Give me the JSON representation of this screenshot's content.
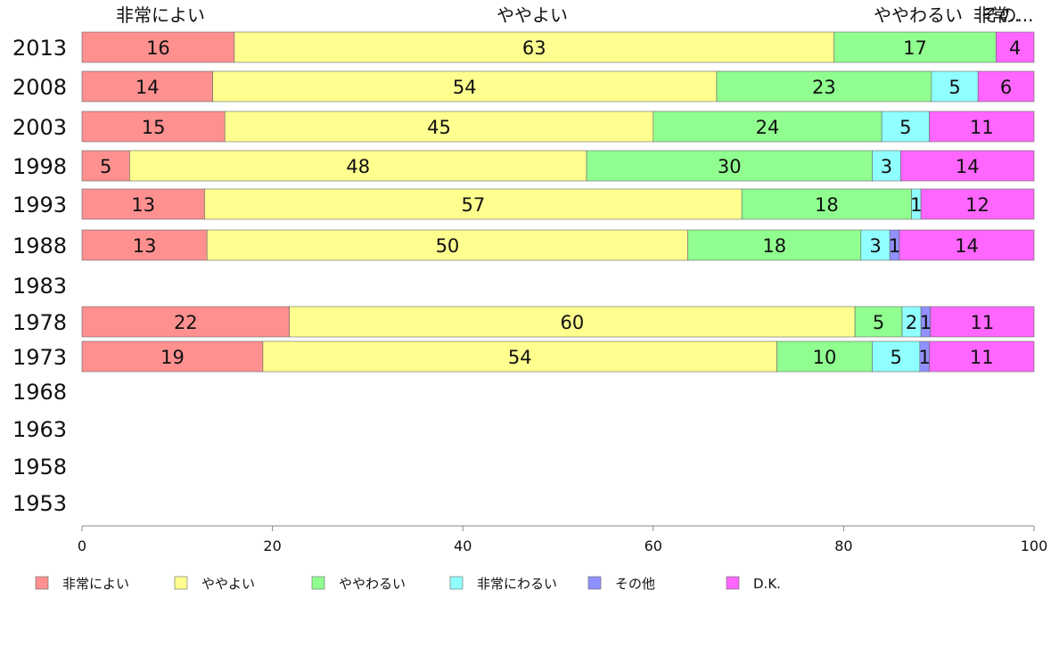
{
  "chart_data": {
    "type": "bar",
    "orientation": "horizontal",
    "stacked": true,
    "percent": true,
    "categories": [
      "2013",
      "2008",
      "2003",
      "1998",
      "1993",
      "1988",
      "1983",
      "1978",
      "1973",
      "1968",
      "1963",
      "1958",
      "1953"
    ],
    "series": [
      {
        "name": "非常によい",
        "color": "#ff9090",
        "values": [
          16,
          14,
          15,
          5,
          13,
          13,
          null,
          22,
          19,
          null,
          null,
          null,
          null
        ]
      },
      {
        "name": "ややよい",
        "color": "#ffff90",
        "values": [
          63,
          54,
          45,
          48,
          57,
          50,
          null,
          60,
          54,
          null,
          null,
          null,
          null
        ]
      },
      {
        "name": "ややわるい",
        "color": "#90ff90",
        "values": [
          17,
          23,
          24,
          30,
          18,
          18,
          null,
          5,
          10,
          null,
          null,
          null,
          null
        ]
      },
      {
        "name": "非常にわるい",
        "color": "#90ffff",
        "values": [
          0,
          5,
          5,
          3,
          1,
          3,
          null,
          2,
          5,
          null,
          null,
          null,
          null
        ]
      },
      {
        "name": "その他",
        "color": "#9090ff",
        "values": [
          0,
          0,
          0,
          0,
          0,
          1,
          null,
          1,
          1,
          null,
          null,
          null,
          null
        ]
      },
      {
        "name": "D.K.",
        "color": "#ff66ff",
        "values": [
          4,
          6,
          11,
          14,
          12,
          14,
          null,
          11,
          11,
          null,
          null,
          null,
          null
        ]
      }
    ],
    "top_labels": [
      "非常によい",
      "ややよい",
      "ややわるい",
      "非常..",
      "その..."
    ],
    "x_ticks": [
      "0",
      "20",
      "40",
      "60",
      "80",
      "100"
    ],
    "xlim": [
      0,
      100
    ],
    "grid": false,
    "legend_position": "bottom",
    "xlabel": "",
    "ylabel": "",
    "title": ""
  }
}
